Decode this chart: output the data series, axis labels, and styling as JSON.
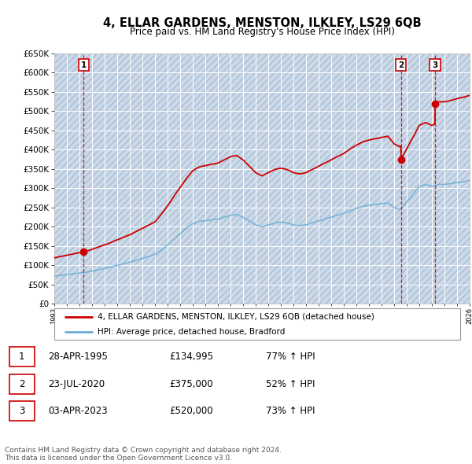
{
  "title": "4, ELLAR GARDENS, MENSTON, ILKLEY, LS29 6QB",
  "subtitle": "Price paid vs. HM Land Registry's House Price Index (HPI)",
  "ylim": [
    0,
    650000
  ],
  "yticks": [
    0,
    50000,
    100000,
    150000,
    200000,
    250000,
    300000,
    350000,
    400000,
    450000,
    500000,
    550000,
    600000,
    650000
  ],
  "xlim_start": 1993,
  "xlim_end": 2026,
  "bg_hatch_color": "#ccd9e8",
  "bg_face_color": "#dae4f0",
  "grid_color": "#ffffff",
  "sale_dates": [
    1995.32,
    2020.55,
    2023.25
  ],
  "sale_prices": [
    134995,
    375000,
    520000
  ],
  "sale_labels": [
    "1",
    "2",
    "3"
  ],
  "legend_line1": "4, ELLAR GARDENS, MENSTON, ILKLEY, LS29 6QB (detached house)",
  "legend_line2": "HPI: Average price, detached house, Bradford",
  "table_rows": [
    [
      "1",
      "28-APR-1995",
      "£134,995",
      "77% ↑ HPI"
    ],
    [
      "2",
      "23-JUL-2020",
      "£375,000",
      "52% ↑ HPI"
    ],
    [
      "3",
      "03-APR-2023",
      "£520,000",
      "73% ↑ HPI"
    ]
  ],
  "footer": "Contains HM Land Registry data © Crown copyright and database right 2024.\nThis data is licensed under the Open Government Licence v3.0.",
  "hpi_color": "#6baed6",
  "price_color": "#cc0000",
  "dashed_color": "#cc0000",
  "years_hpi": [
    1993,
    1993.5,
    1994,
    1994.5,
    1995,
    1995.5,
    1996,
    1996.5,
    1997,
    1997.5,
    1998,
    1998.5,
    1999,
    1999.5,
    2000,
    2000.5,
    2001,
    2001.5,
    2002,
    2002.5,
    2003,
    2003.5,
    2004,
    2004.5,
    2005,
    2005.5,
    2006,
    2006.5,
    2007,
    2007.5,
    2008,
    2008.5,
    2009,
    2009.5,
    2010,
    2010.5,
    2011,
    2011.5,
    2012,
    2012.5,
    2013,
    2013.5,
    2014,
    2014.5,
    2015,
    2015.5,
    2016,
    2016.5,
    2017,
    2017.5,
    2018,
    2018.5,
    2019,
    2019.5,
    2020,
    2020.5,
    2021,
    2021.5,
    2022,
    2022.5,
    2023,
    2023.5,
    2024,
    2024.5,
    2025,
    2025.5,
    2026
  ],
  "hpi_vals": [
    72000,
    74000,
    76000,
    78000,
    80000,
    82000,
    85000,
    89000,
    92000,
    96000,
    100000,
    104000,
    108000,
    113000,
    118000,
    123000,
    128000,
    140000,
    153000,
    168000,
    182000,
    196000,
    208000,
    214000,
    216000,
    218000,
    220000,
    225000,
    230000,
    232000,
    225000,
    215000,
    205000,
    200000,
    205000,
    210000,
    212000,
    210000,
    205000,
    203000,
    205000,
    210000,
    215000,
    220000,
    225000,
    230000,
    235000,
    242000,
    248000,
    253000,
    256000,
    258000,
    260000,
    262000,
    250000,
    245000,
    265000,
    285000,
    305000,
    310000,
    305000,
    310000,
    310000,
    312000,
    315000,
    317000,
    320000
  ]
}
